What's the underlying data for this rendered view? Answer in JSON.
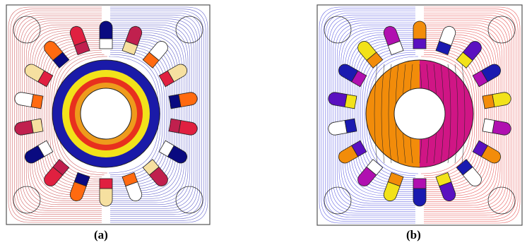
{
  "figure": {
    "panels": [
      {
        "caption": "(a)",
        "field_colors": {
          "left": "#c0282a",
          "right": "#2b2bb8"
        },
        "rotor_rings": [
          "#1a1aa8",
          "#f2e21a",
          "#e8301e"
        ],
        "slot_fill_palette": [
          "#0a0a80",
          "#c0204e",
          "#ffffff",
          "#f6e0a0",
          "#ff6a10",
          "#e02040"
        ]
      },
      {
        "caption": "(b)",
        "field_colors": {
          "left": "#2b2bd8",
          "right": "#e02020"
        },
        "rotor_halves": [
          "#f28c0a",
          "#d01585"
        ],
        "slot_fill_palette": [
          "#f28c0a",
          "#ffffff",
          "#5a10c0",
          "#1a1ab0",
          "#f2e21a",
          "#b010b0"
        ]
      }
    ]
  }
}
